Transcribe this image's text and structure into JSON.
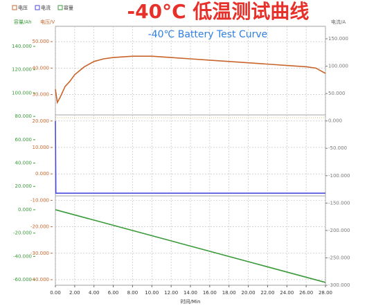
{
  "chart_data": {
    "type": "line",
    "title": "-40°C 低温测试曲线",
    "subtitle": "-40℃ Battery Test Curve",
    "xlabel": "时间/Min",
    "ylabel": "电压/V",
    "y2label": "电流/A",
    "y3label": "容量/Ah",
    "xlim": [
      0,
      28
    ],
    "xticks": [
      {
        "value": 0,
        "label": "0.00"
      },
      {
        "value": 2,
        "label": "2.00"
      },
      {
        "value": 4,
        "label": "4.00"
      },
      {
        "value": 6,
        "label": "6.00"
      },
      {
        "value": 8,
        "label": "8.00"
      },
      {
        "value": 10,
        "label": "10.00"
      },
      {
        "value": 12,
        "label": "12.00"
      },
      {
        "value": 14,
        "label": "14.00"
      },
      {
        "value": 16,
        "label": "16.00"
      },
      {
        "value": 18,
        "label": "18.00"
      },
      {
        "value": 20,
        "label": "20.00"
      },
      {
        "value": 22,
        "label": "22.00"
      },
      {
        "value": 24,
        "label": "24.00"
      },
      {
        "value": 26,
        "label": "26.00"
      },
      {
        "value": 28,
        "label": "28.00"
      }
    ],
    "ylim": [
      -42.1,
      55.8
    ],
    "yticks": [
      {
        "value": 50,
        "label": "50.000"
      },
      {
        "value": 40,
        "label": "40.000"
      },
      {
        "value": 30,
        "label": "30.000"
      },
      {
        "value": 20,
        "label": "20.000"
      },
      {
        "value": 10,
        "label": "10.000"
      },
      {
        "value": 0,
        "label": "0.000"
      },
      {
        "value": -10,
        "label": "-10.000"
      },
      {
        "value": -20,
        "label": "-20.000"
      },
      {
        "value": -30,
        "label": "-30.000"
      },
      {
        "value": -40,
        "label": "-40.000"
      }
    ],
    "y2lim": [
      -300,
      172.8
    ],
    "y2ticks": [
      {
        "value": 150,
        "label": "150.000"
      },
      {
        "value": 100,
        "label": "100.000"
      },
      {
        "value": 50,
        "label": "50.000"
      },
      {
        "value": 0,
        "label": "0.000"
      },
      {
        "value": -50,
        "label": "-50.000"
      },
      {
        "value": -100,
        "label": "-100.000"
      },
      {
        "value": -150,
        "label": "-150.000"
      },
      {
        "value": -200,
        "label": "-200.000"
      },
      {
        "value": -250,
        "label": "-250.000"
      },
      {
        "value": -300,
        "label": "-300.000"
      }
    ],
    "y3lim": [
      -64.7,
      157.2
    ],
    "y3ticks": [
      {
        "value": 140,
        "label": "140.000"
      },
      {
        "value": 120,
        "label": "120.000"
      },
      {
        "value": 100,
        "label": "100.000"
      },
      {
        "value": 80,
        "label": "80.000"
      },
      {
        "value": 60,
        "label": "60.000"
      },
      {
        "value": 40,
        "label": "40.000"
      },
      {
        "value": 20,
        "label": "20.000"
      },
      {
        "value": 0,
        "label": "0.000"
      },
      {
        "value": -20,
        "label": "-20.000"
      },
      {
        "value": -40,
        "label": "-40.000"
      },
      {
        "value": -60,
        "label": "-60.000"
      }
    ],
    "grid": true,
    "series": [
      {
        "name": "电压",
        "color": "#c8642a",
        "axis": "y",
        "x": [
          0,
          0.2,
          0.5,
          1,
          1.5,
          2,
          3,
          4,
          5,
          6,
          8,
          10,
          12,
          14,
          16,
          18,
          20,
          22,
          24,
          26,
          27,
          28
        ],
        "values": [
          32,
          27,
          29,
          33,
          35,
          37.5,
          40.5,
          42.5,
          43.5,
          44,
          44.5,
          44.5,
          44,
          43.5,
          43,
          42.5,
          42,
          41.5,
          41,
          40.5,
          40,
          38
        ]
      },
      {
        "name": "电流",
        "color": "#4a4adc",
        "axis": "y2",
        "x": [
          0,
          0.05,
          28
        ],
        "values": [
          0,
          -132,
          -132
        ]
      },
      {
        "name": "容量",
        "color": "#3a9a3a",
        "axis": "y3",
        "x": [
          0,
          28
        ],
        "values": [
          0,
          -62.3
        ]
      }
    ]
  }
}
